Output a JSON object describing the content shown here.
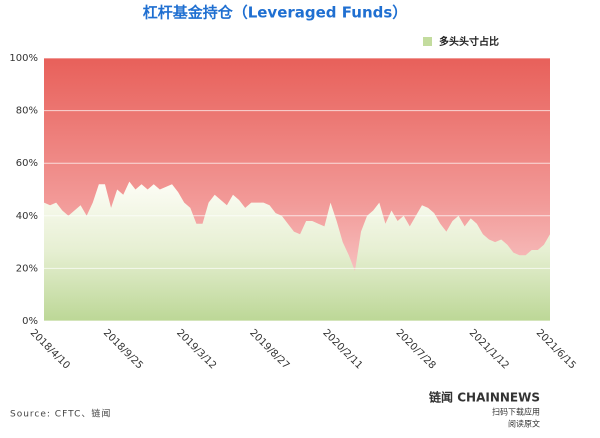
{
  "chart_data": {
    "type": "area",
    "title": "杠杆基金持仓（Leveraged Funds）",
    "categories": [
      "2018/4/10",
      null,
      null,
      null,
      null,
      null,
      null,
      null,
      null,
      null,
      null,
      null,
      "2018/9/25",
      null,
      null,
      null,
      null,
      null,
      null,
      null,
      null,
      null,
      null,
      null,
      "2019/3/12",
      null,
      null,
      null,
      null,
      null,
      null,
      null,
      null,
      null,
      null,
      null,
      "2019/8/27",
      null,
      null,
      null,
      null,
      null,
      null,
      null,
      null,
      null,
      null,
      null,
      "2020/2/11",
      null,
      null,
      null,
      null,
      null,
      null,
      null,
      null,
      null,
      null,
      null,
      "2020/7/28",
      null,
      null,
      null,
      null,
      null,
      null,
      null,
      null,
      null,
      null,
      null,
      "2021/1/12",
      null,
      null,
      null,
      null,
      null,
      null,
      null,
      null,
      null,
      null,
      "2021/6/15"
    ],
    "series": [
      {
        "name": "多头头寸占比",
        "color": "#c3dc9e",
        "values": [
          45,
          44,
          45,
          42,
          40,
          42,
          44,
          40,
          45,
          52,
          52,
          43,
          50,
          48,
          53,
          50,
          52,
          50,
          52,
          50,
          51,
          52,
          49,
          45,
          43,
          37,
          37,
          45,
          48,
          46,
          44,
          48,
          46,
          43,
          45,
          45,
          45,
          44,
          41,
          40,
          37,
          34,
          33,
          38,
          38,
          37,
          36,
          45,
          38,
          30,
          25,
          19,
          34,
          40,
          42,
          45,
          37,
          42,
          38,
          40,
          36,
          40,
          44,
          43,
          41,
          37,
          34,
          38,
          40,
          36,
          39,
          37,
          33,
          31,
          30,
          31,
          29,
          26,
          25,
          25,
          27,
          27,
          29,
          33
        ]
      }
    ],
    "ylim": [
      0,
      100
    ],
    "yticks": [
      {
        "value": 0,
        "label": "0%"
      },
      {
        "value": 20,
        "label": "20%"
      },
      {
        "value": 40,
        "label": "40%"
      },
      {
        "value": 60,
        "label": "60%"
      },
      {
        "value": 80,
        "label": "80%"
      },
      {
        "value": 100,
        "label": "100%"
      }
    ],
    "grid": true,
    "legend": "top-right",
    "source": "Source: CFTC、链闻"
  },
  "footer": {
    "brand": "链闻 CHAINNEWS",
    "line1": "扫码下载应用",
    "line2": "阅读原文"
  }
}
